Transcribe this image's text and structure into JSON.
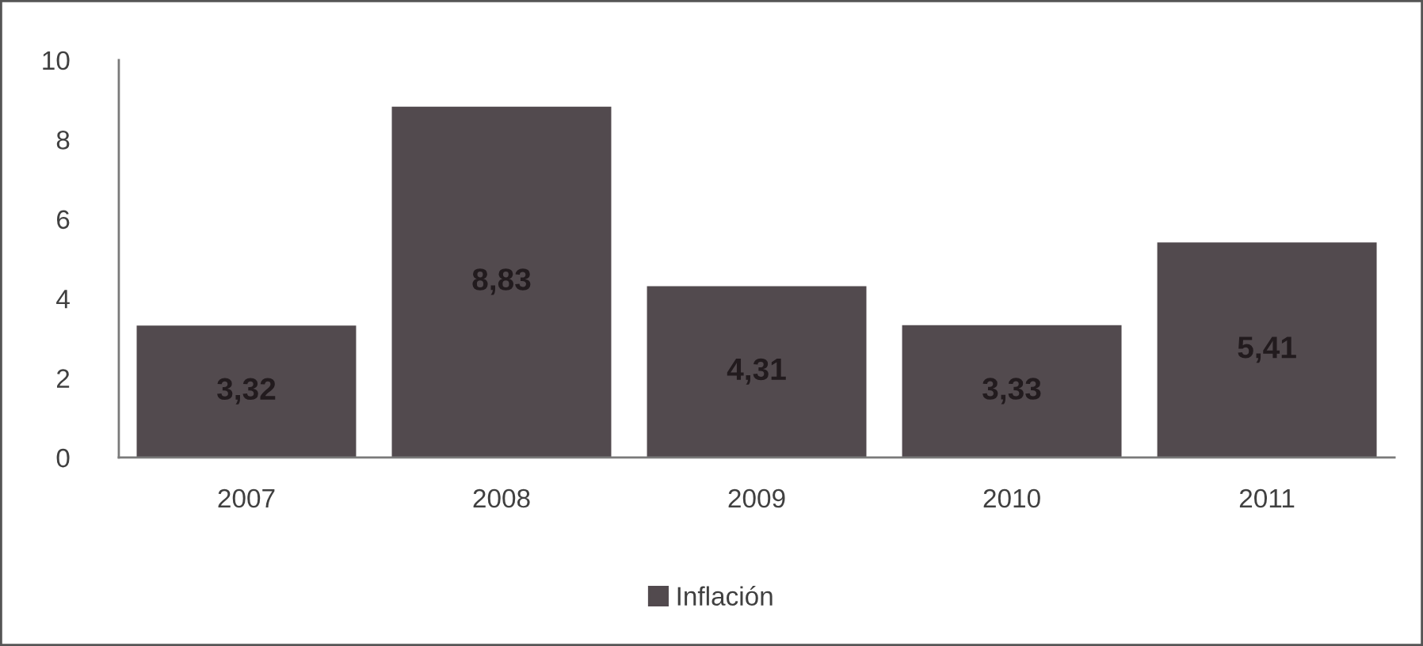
{
  "chart_data": {
    "type": "bar",
    "categories": [
      "2007",
      "2008",
      "2009",
      "2010",
      "2011"
    ],
    "series": [
      {
        "name": "Inflación",
        "color": "#524a4e",
        "values": [
          3.32,
          8.83,
          4.31,
          3.33,
          5.41
        ],
        "value_labels": [
          "3,32",
          "8,83",
          "4,31",
          "3,33",
          "5,41"
        ]
      }
    ],
    "ylim": [
      0,
      10
    ],
    "yticks": [
      0,
      2,
      4,
      6,
      8,
      10
    ],
    "grid": false,
    "legend": "bottom"
  }
}
